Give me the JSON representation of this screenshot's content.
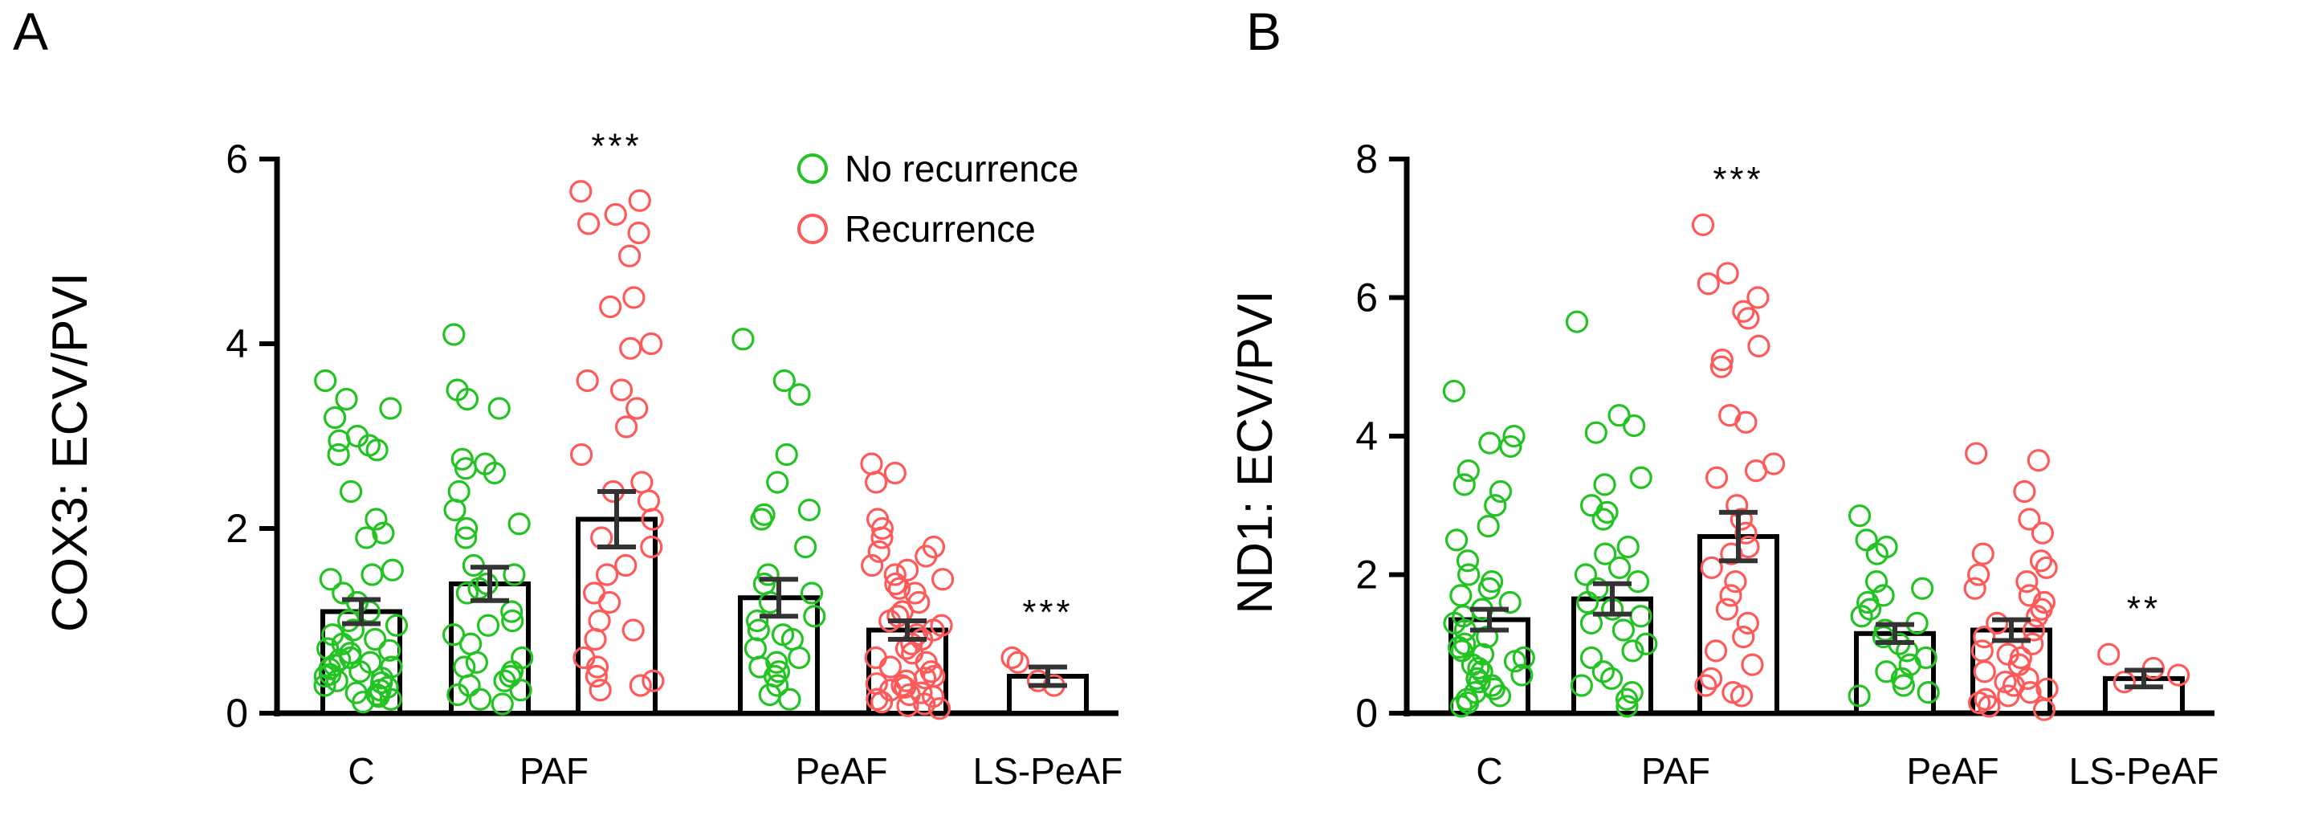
{
  "colors": {
    "no_recurrence": "#22c322",
    "recurrence": "#ff5a5a",
    "axis": "#000000",
    "error_bar": "#333333"
  },
  "legend": {
    "no_recurrence": "No recurrence",
    "recurrence": "Recurrence"
  },
  "chart_data": [
    {
      "panel": "A",
      "type": "bar",
      "ylabel": "COX3: ECV/PVI",
      "ylim": [
        0,
        6
      ],
      "yticks": [
        "0",
        "2",
        "4",
        "6"
      ],
      "category_labels": [
        "C",
        "PAF",
        "PeAF",
        "LS-PeAF"
      ],
      "legend_position": "top-right",
      "series": [
        {
          "name": "C",
          "group": "No recurrence",
          "mean": 1.1,
          "sem": 0.13,
          "significance": "",
          "points": [
            3.6,
            3.4,
            3.3,
            3.2,
            3.0,
            2.95,
            2.9,
            2.85,
            2.8,
            2.4,
            2.1,
            1.95,
            1.9,
            1.55,
            1.5,
            1.45,
            1.3,
            1.2,
            1.1,
            1.0,
            0.95,
            0.9,
            0.85,
            0.8,
            0.75,
            0.7,
            0.68,
            0.65,
            0.6,
            0.58,
            0.55,
            0.52,
            0.5,
            0.48,
            0.45,
            0.42,
            0.4,
            0.38,
            0.35,
            0.33,
            0.3,
            0.28,
            0.25,
            0.22,
            0.2,
            0.18,
            0.15,
            0.12
          ]
        },
        {
          "name": "PAF",
          "group": "No recurrence",
          "mean": 1.4,
          "sem": 0.18,
          "significance": "",
          "points": [
            4.1,
            3.5,
            3.4,
            3.3,
            2.75,
            2.7,
            2.65,
            2.6,
            2.4,
            2.2,
            2.05,
            2.0,
            1.9,
            1.6,
            1.5,
            1.4,
            1.35,
            1.3,
            1.1,
            1.0,
            0.95,
            0.85,
            0.75,
            0.6,
            0.55,
            0.5,
            0.45,
            0.4,
            0.35,
            0.3,
            0.25,
            0.2,
            0.15,
            0.1
          ]
        },
        {
          "name": "PAF",
          "group": "Recurrence",
          "mean": 2.1,
          "sem": 0.3,
          "significance": "***",
          "points": [
            5.65,
            5.55,
            5.4,
            5.3,
            5.2,
            4.95,
            4.5,
            4.4,
            4.0,
            3.95,
            3.6,
            3.5,
            3.3,
            3.1,
            2.8,
            2.5,
            2.4,
            2.3,
            2.1,
            1.9,
            1.8,
            1.6,
            1.5,
            1.3,
            1.2,
            1.0,
            0.9,
            0.8,
            0.6,
            0.5,
            0.4,
            0.35,
            0.3,
            0.25
          ]
        },
        {
          "name": "PeAF",
          "group": "No recurrence",
          "mean": 1.25,
          "sem": 0.2,
          "significance": "",
          "points": [
            4.05,
            3.6,
            3.45,
            2.8,
            2.5,
            2.2,
            2.15,
            2.1,
            1.8,
            1.5,
            1.4,
            1.3,
            1.2,
            1.05,
            1.0,
            0.9,
            0.85,
            0.8,
            0.7,
            0.6,
            0.55,
            0.5,
            0.45,
            0.4,
            0.3,
            0.2,
            0.15
          ]
        },
        {
          "name": "PeAF",
          "group": "Recurrence",
          "mean": 0.9,
          "sem": 0.1,
          "significance": "",
          "points": [
            2.7,
            2.6,
            2.5,
            2.1,
            2.0,
            1.9,
            1.8,
            1.75,
            1.7,
            1.6,
            1.55,
            1.5,
            1.45,
            1.4,
            1.35,
            1.3,
            1.2,
            1.1,
            1.05,
            1.0,
            0.95,
            0.9,
            0.85,
            0.8,
            0.75,
            0.7,
            0.65,
            0.6,
            0.55,
            0.5,
            0.45,
            0.4,
            0.38,
            0.35,
            0.32,
            0.3,
            0.28,
            0.25,
            0.22,
            0.2,
            0.18,
            0.15,
            0.12,
            0.1,
            0.08,
            0.05
          ]
        },
        {
          "name": "LS-PeAF",
          "group": "Recurrence",
          "mean": 0.4,
          "sem": 0.1,
          "significance": "***",
          "points": [
            0.6,
            0.55,
            0.35,
            0.3
          ]
        }
      ]
    },
    {
      "panel": "B",
      "type": "bar",
      "ylabel": "ND1: ECV/PVI",
      "ylim": [
        0,
        8
      ],
      "yticks": [
        "0",
        "2",
        "4",
        "6",
        "8"
      ],
      "category_labels": [
        "C",
        "PAF",
        "PeAF",
        "LS-PeAF"
      ],
      "legend_position": "none",
      "series": [
        {
          "name": "C",
          "group": "No recurrence",
          "mean": 1.35,
          "sem": 0.15,
          "significance": "",
          "points": [
            4.65,
            4.0,
            3.9,
            3.85,
            3.5,
            3.3,
            3.2,
            3.0,
            2.7,
            2.5,
            2.2,
            2.0,
            1.9,
            1.8,
            1.7,
            1.6,
            1.5,
            1.4,
            1.3,
            1.2,
            1.1,
            1.0,
            0.95,
            0.9,
            0.85,
            0.8,
            0.75,
            0.7,
            0.65,
            0.6,
            0.55,
            0.5,
            0.45,
            0.4,
            0.35,
            0.3,
            0.25,
            0.2,
            0.15,
            0.1
          ]
        },
        {
          "name": "PAF",
          "group": "No recurrence",
          "mean": 1.65,
          "sem": 0.22,
          "significance": "",
          "points": [
            5.65,
            4.3,
            4.15,
            4.05,
            3.4,
            3.3,
            3.0,
            2.9,
            2.8,
            2.4,
            2.3,
            2.1,
            2.0,
            1.9,
            1.8,
            1.6,
            1.5,
            1.4,
            1.3,
            1.2,
            1.0,
            0.9,
            0.8,
            0.6,
            0.5,
            0.4,
            0.3,
            0.2,
            0.1
          ]
        },
        {
          "name": "PAF",
          "group": "Recurrence",
          "mean": 2.55,
          "sem": 0.35,
          "significance": "***",
          "points": [
            7.05,
            6.35,
            6.2,
            6.0,
            5.8,
            5.7,
            5.3,
            5.1,
            5.0,
            4.3,
            4.2,
            3.6,
            3.5,
            3.4,
            3.0,
            2.8,
            2.6,
            2.4,
            2.3,
            2.1,
            1.9,
            1.7,
            1.5,
            1.3,
            1.1,
            0.9,
            0.7,
            0.5,
            0.4,
            0.3,
            0.25
          ]
        },
        {
          "name": "PeAF",
          "group": "No recurrence",
          "mean": 1.15,
          "sem": 0.13,
          "significance": "",
          "points": [
            2.85,
            2.5,
            2.4,
            2.3,
            1.9,
            1.8,
            1.7,
            1.6,
            1.5,
            1.4,
            1.3,
            1.2,
            1.1,
            1.0,
            0.9,
            0.8,
            0.7,
            0.6,
            0.5,
            0.4,
            0.3,
            0.25
          ]
        },
        {
          "name": "PeAF",
          "group": "Recurrence",
          "mean": 1.2,
          "sem": 0.15,
          "significance": "",
          "points": [
            3.75,
            3.65,
            3.2,
            2.8,
            2.6,
            2.3,
            2.2,
            2.1,
            2.0,
            1.9,
            1.8,
            1.7,
            1.6,
            1.5,
            1.4,
            1.3,
            1.2,
            1.1,
            1.0,
            0.9,
            0.85,
            0.8,
            0.7,
            0.6,
            0.5,
            0.45,
            0.4,
            0.35,
            0.3,
            0.25,
            0.2,
            0.15,
            0.1,
            0.05
          ]
        },
        {
          "name": "LS-PeAF",
          "group": "Recurrence",
          "mean": 0.5,
          "sem": 0.12,
          "significance": "**",
          "points": [
            0.85,
            0.65,
            0.55,
            0.45
          ]
        }
      ]
    }
  ]
}
